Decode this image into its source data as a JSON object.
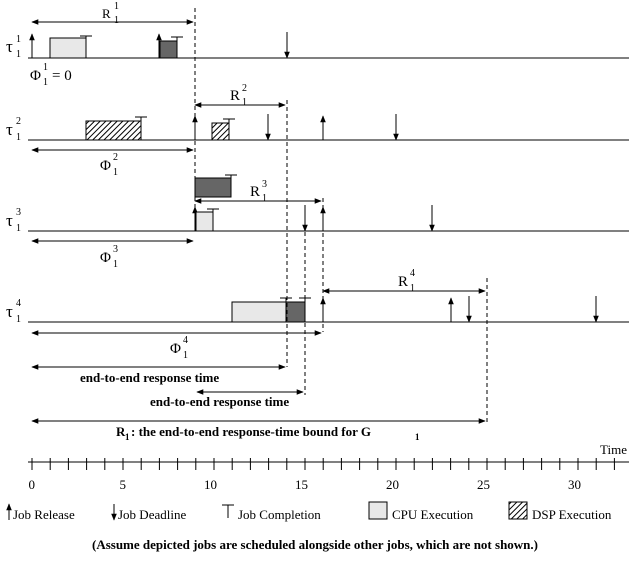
{
  "axis": {
    "label": "Time",
    "ticks": [
      "0",
      "5",
      "10",
      "15",
      "20",
      "25",
      "30"
    ]
  },
  "tasks": [
    {
      "sym": "τ",
      "sup": "1",
      "sub": "1"
    },
    {
      "sym": "τ",
      "sup": "2",
      "sub": "1"
    },
    {
      "sym": "τ",
      "sup": "3",
      "sub": "1"
    },
    {
      "sym": "τ",
      "sup": "4",
      "sub": "1"
    }
  ],
  "labels": {
    "R": "R",
    "Phi": "Φ",
    "phi11_eq": "= 0",
    "sub1": "1",
    "sup1": "1",
    "sup2": "2",
    "sup3": "3",
    "sup4": "4",
    "ete1": "end-to-end response time",
    "ete2": "end-to-end response time",
    "bound_R": "R",
    "bound_rest": ": the end-to-end response-time bound for G",
    "bound_sub": "1"
  },
  "legend": {
    "release": "Job Release",
    "deadline": "Job Deadline",
    "completion": "Job Completion",
    "cpu": "CPU Execution",
    "dsp": "DSP Execution"
  },
  "note": "(Assume depicted jobs are scheduled alongside other jobs, which are not shown.)",
  "colors": {
    "cpu": "#e8e8e8",
    "dsp": "#666666",
    "line": "#000000"
  }
}
